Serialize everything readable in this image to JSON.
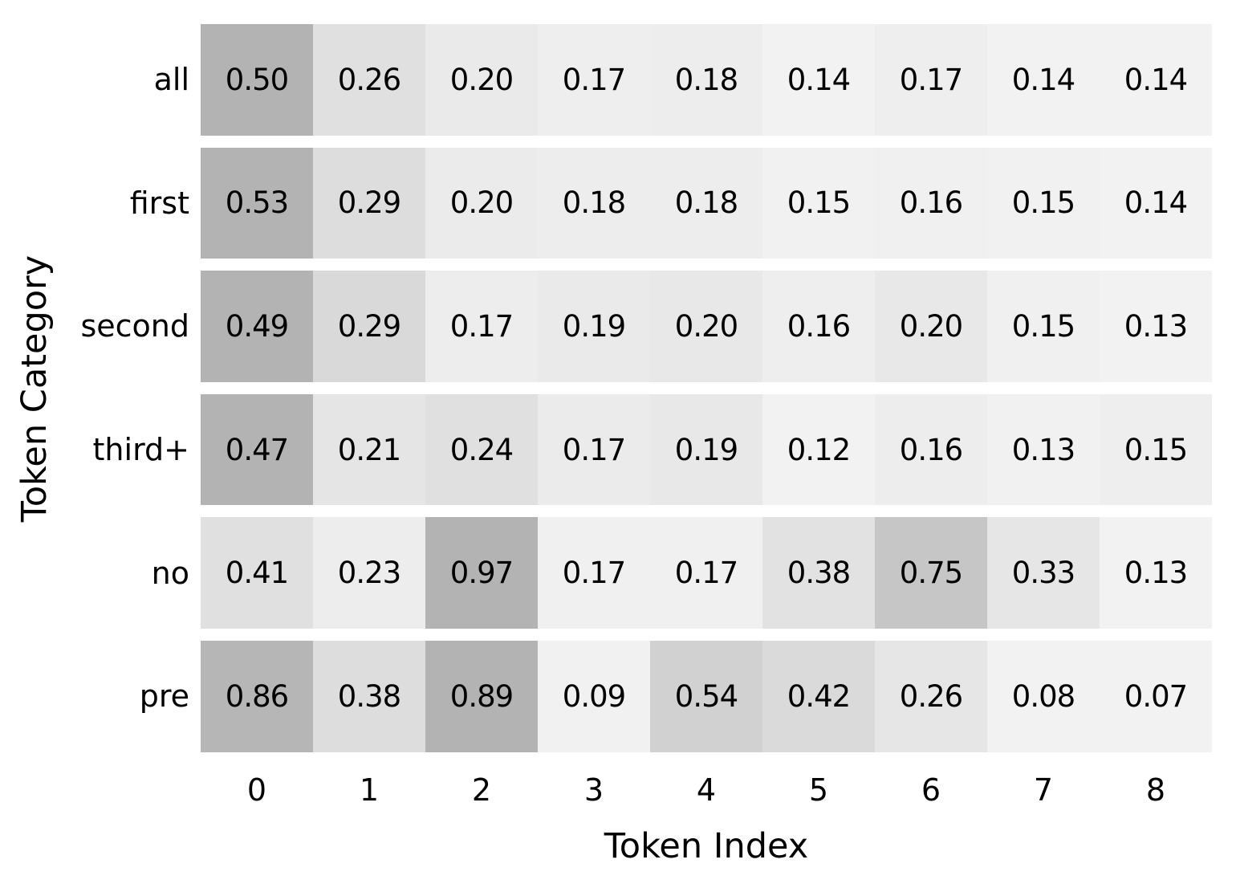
{
  "chart_data": {
    "type": "heatmap",
    "xlabel": "Token Index",
    "ylabel": "Token Category",
    "x_tick_labels": [
      "0",
      "1",
      "2",
      "3",
      "4",
      "5",
      "6",
      "7",
      "8"
    ],
    "categories": [
      "all",
      "first",
      "second",
      "third+",
      "no",
      "pre"
    ],
    "series": [
      {
        "name": "all",
        "values": [
          0.5,
          0.26,
          0.2,
          0.17,
          0.18,
          0.14,
          0.17,
          0.14,
          0.14
        ]
      },
      {
        "name": "first",
        "values": [
          0.53,
          0.29,
          0.2,
          0.18,
          0.18,
          0.15,
          0.16,
          0.15,
          0.14
        ]
      },
      {
        "name": "second",
        "values": [
          0.49,
          0.29,
          0.17,
          0.19,
          0.2,
          0.16,
          0.2,
          0.15,
          0.13
        ]
      },
      {
        "name": "third+",
        "values": [
          0.47,
          0.21,
          0.24,
          0.17,
          0.19,
          0.12,
          0.16,
          0.13,
          0.15
        ]
      },
      {
        "name": "no",
        "values": [
          0.41,
          0.23,
          0.97,
          0.17,
          0.17,
          0.38,
          0.75,
          0.33,
          0.13
        ]
      },
      {
        "name": "pre",
        "values": [
          0.86,
          0.38,
          0.89,
          0.09,
          0.54,
          0.42,
          0.26,
          0.08,
          0.07
        ]
      }
    ],
    "value_format": "0.00",
    "normalization": "per-row-minmax",
    "colormap": {
      "low": "#f2f2f2",
      "high": "#b3b3b3",
      "gamma": 1.15
    },
    "cell_text_color": "#000000",
    "background": "#ffffff",
    "grid": "off",
    "legend": "none"
  }
}
